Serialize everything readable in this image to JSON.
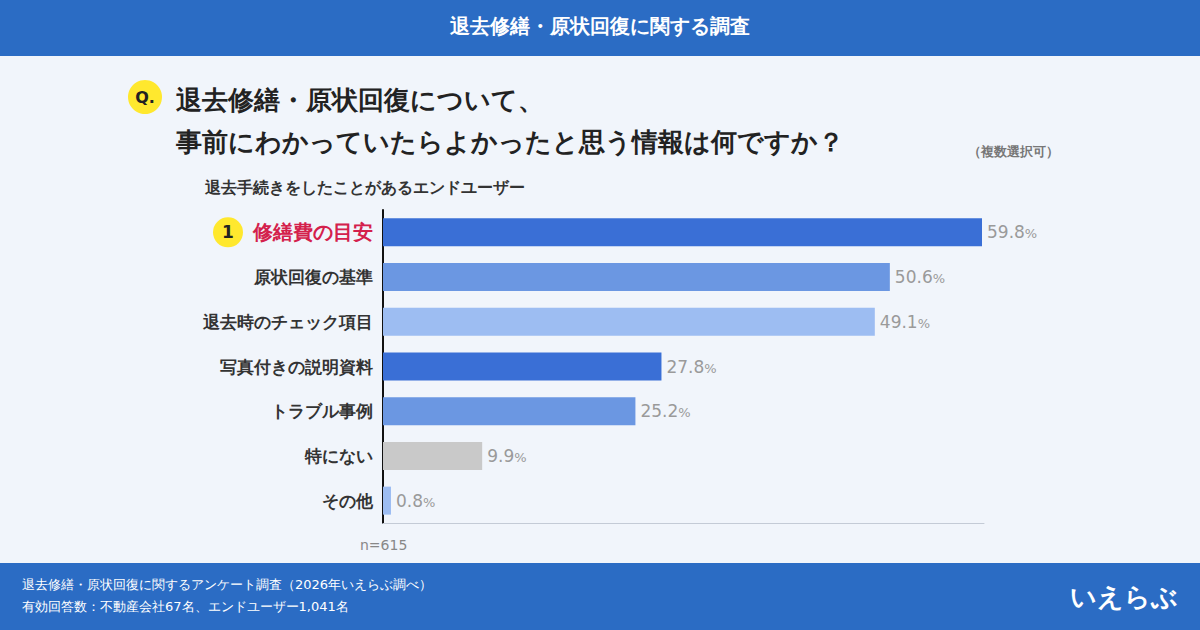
{
  "header": "退去修繕・原状回復に関する調査",
  "chart_data": {
    "type": "bar",
    "question_mark": "Q.",
    "title": [
      "退去修繕・原状回復について、",
      "事前にわかっていたらよかったと思う情報は何ですか？"
    ],
    "note": "（複数選択可）",
    "subtitle": "退去手続きをしたことがあるエンドユーザー",
    "rank_label": "1",
    "categories": [
      "修繕費の目安",
      "原状回復の基準",
      "退去時のチェック項目",
      "写真付きの説明資料",
      "トラブル事例",
      "特にない",
      "その他"
    ],
    "values": [
      59.8,
      50.6,
      49.1,
      27.8,
      25.2,
      9.9,
      0.8
    ],
    "value_labels": [
      "59.8%",
      "50.6%",
      "49.1%",
      "27.8%",
      "25.2%",
      "9.9%",
      "0.8%"
    ],
    "colors": [
      "#3a6fd6",
      "#6b97e2",
      "#9dbdf2",
      "#3a6fd6",
      "#6b97e2",
      "#c9c9c9",
      "#9dbdf2"
    ],
    "orientation": "horizontal",
    "data_labels": true,
    "tick_labels": "y",
    "grid": false,
    "xlim": [
      0,
      60
    ],
    "sample_size": "n=615"
  },
  "footer": [
    "退去修繕・原状回復に関するアンケート調査（2026年いえらぶ調べ）",
    "有効回答数：不動産会社67名、エンドユーザー1,041名"
  ],
  "logo": "いえらぶ"
}
